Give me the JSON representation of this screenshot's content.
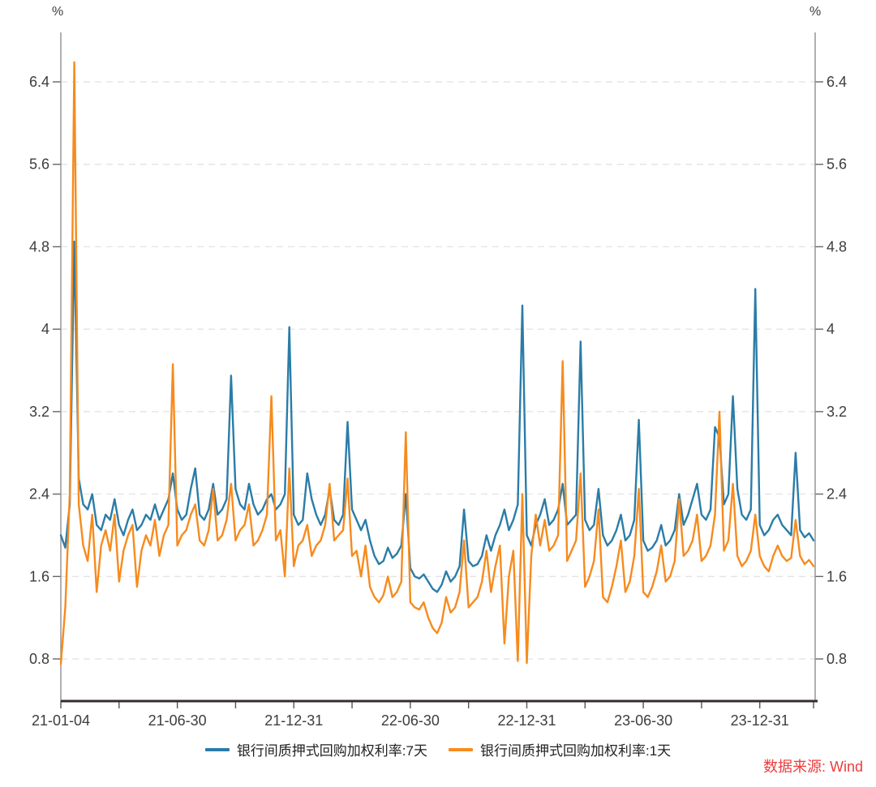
{
  "unit_left": "%",
  "unit_right": "%",
  "source_note": "数据来源: Wind",
  "colors": {
    "series_7d": "#2B7CA7",
    "series_1d": "#F68B1E",
    "grid": "#E1E1E1",
    "side_axis": "#8F8F8F",
    "bottom_axis": "#332E2C",
    "tick_text": "#3D3D3D",
    "source_red": "#EE3B3B"
  },
  "legend": [
    {
      "label": "银行间质押式回购加权利率:7天",
      "color": "#2B7CA7"
    },
    {
      "label": "银行间质押式回购加权利率:1天",
      "color": "#F68B1E"
    }
  ],
  "chart_data": {
    "type": "line",
    "title": "",
    "xlabel": "",
    "ylabel": "%",
    "ylim": [
      0.35,
      6.9
    ],
    "grid": "horizontal-dashed",
    "legend_position": "bottom-center",
    "y_ticks": [
      0.8,
      1.6,
      2.4,
      3.2,
      4,
      4.8,
      5.6,
      6.4
    ],
    "x_tick_labels": [
      "21-01-04",
      "21-06-30",
      "21-12-31",
      "22-06-30",
      "22-12-31",
      "23-06-30",
      "23-12-31"
    ],
    "x_ticks_weeks_per_label": 26,
    "x": [
      "2021-01-04",
      "2021-01-11",
      "2021-01-18",
      "2021-01-25",
      "2021-02-01",
      "2021-02-08",
      "2021-02-15",
      "2021-02-22",
      "2021-03-01",
      "2021-03-08",
      "2021-03-15",
      "2021-03-22",
      "2021-03-29",
      "2021-04-05",
      "2021-04-12",
      "2021-04-19",
      "2021-04-26",
      "2021-05-03",
      "2021-05-10",
      "2021-05-17",
      "2021-05-24",
      "2021-05-31",
      "2021-06-07",
      "2021-06-14",
      "2021-06-21",
      "2021-06-28",
      "2021-07-05",
      "2021-07-12",
      "2021-07-19",
      "2021-07-26",
      "2021-08-02",
      "2021-08-09",
      "2021-08-16",
      "2021-08-23",
      "2021-08-30",
      "2021-09-06",
      "2021-09-13",
      "2021-09-20",
      "2021-09-27",
      "2021-10-04",
      "2021-10-11",
      "2021-10-18",
      "2021-10-25",
      "2021-11-01",
      "2021-11-08",
      "2021-11-15",
      "2021-11-22",
      "2021-11-29",
      "2021-12-06",
      "2021-12-13",
      "2021-12-20",
      "2021-12-27",
      "2022-01-03",
      "2022-01-10",
      "2022-01-17",
      "2022-01-24",
      "2022-01-31",
      "2022-02-07",
      "2022-02-14",
      "2022-02-21",
      "2022-02-28",
      "2022-03-07",
      "2022-03-14",
      "2022-03-21",
      "2022-03-28",
      "2022-04-04",
      "2022-04-11",
      "2022-04-18",
      "2022-04-25",
      "2022-05-02",
      "2022-05-09",
      "2022-05-16",
      "2022-05-23",
      "2022-05-30",
      "2022-06-06",
      "2022-06-13",
      "2022-06-20",
      "2022-06-27",
      "2022-07-04",
      "2022-07-11",
      "2022-07-18",
      "2022-07-25",
      "2022-08-01",
      "2022-08-08",
      "2022-08-15",
      "2022-08-22",
      "2022-08-29",
      "2022-09-05",
      "2022-09-12",
      "2022-09-19",
      "2022-09-26",
      "2022-10-03",
      "2022-10-10",
      "2022-10-17",
      "2022-10-24",
      "2022-10-31",
      "2022-11-07",
      "2022-11-14",
      "2022-11-21",
      "2022-11-28",
      "2022-12-05",
      "2022-12-12",
      "2022-12-19",
      "2022-12-26",
      "2023-01-02",
      "2023-01-09",
      "2023-01-16",
      "2023-01-23",
      "2023-01-30",
      "2023-02-06",
      "2023-02-13",
      "2023-02-20",
      "2023-02-27",
      "2023-03-06",
      "2023-03-13",
      "2023-03-20",
      "2023-03-27",
      "2023-04-03",
      "2023-04-10",
      "2023-04-17",
      "2023-04-24",
      "2023-05-01",
      "2023-05-08",
      "2023-05-15",
      "2023-05-22",
      "2023-05-29",
      "2023-06-05",
      "2023-06-12",
      "2023-06-19",
      "2023-06-26",
      "2023-07-03",
      "2023-07-10",
      "2023-07-17",
      "2023-07-24",
      "2023-07-31",
      "2023-08-07",
      "2023-08-14",
      "2023-08-21",
      "2023-08-28",
      "2023-09-04",
      "2023-09-11",
      "2023-09-18",
      "2023-09-25",
      "2023-10-02",
      "2023-10-09",
      "2023-10-16",
      "2023-10-23",
      "2023-10-30",
      "2023-11-06",
      "2023-11-13",
      "2023-11-20",
      "2023-11-27",
      "2023-12-04",
      "2023-12-11",
      "2023-12-18",
      "2023-12-25",
      "2024-01-01",
      "2024-01-08",
      "2024-01-15",
      "2024-01-22",
      "2024-01-29",
      "2024-02-05",
      "2024-02-12",
      "2024-02-19",
      "2024-02-26",
      "2024-03-04",
      "2024-03-11",
      "2024-03-18",
      "2024-03-25"
    ],
    "series": [
      {
        "name": "银行间质押式回购加权利率:7天",
        "color": "#2B7CA7",
        "values": [
          2.0,
          1.88,
          2.3,
          4.85,
          2.55,
          2.3,
          2.25,
          2.4,
          2.1,
          2.05,
          2.2,
          2.15,
          2.35,
          2.1,
          2.0,
          2.15,
          2.25,
          2.05,
          2.1,
          2.2,
          2.15,
          2.3,
          2.15,
          2.25,
          2.35,
          2.6,
          2.25,
          2.15,
          2.2,
          2.45,
          2.65,
          2.2,
          2.15,
          2.25,
          2.5,
          2.2,
          2.25,
          2.35,
          3.55,
          2.45,
          2.3,
          2.25,
          2.5,
          2.3,
          2.2,
          2.25,
          2.35,
          2.4,
          2.25,
          2.3,
          2.4,
          4.02,
          2.2,
          2.1,
          2.15,
          2.6,
          2.35,
          2.2,
          2.1,
          2.2,
          2.45,
          2.15,
          2.1,
          2.2,
          3.1,
          2.25,
          2.15,
          2.05,
          2.15,
          1.95,
          1.8,
          1.72,
          1.75,
          1.88,
          1.78,
          1.82,
          1.9,
          2.4,
          1.68,
          1.6,
          1.58,
          1.62,
          1.55,
          1.48,
          1.45,
          1.52,
          1.65,
          1.55,
          1.6,
          1.7,
          2.25,
          1.75,
          1.7,
          1.72,
          1.8,
          2.0,
          1.85,
          2.0,
          2.1,
          2.25,
          2.05,
          2.15,
          2.3,
          4.23,
          2.0,
          1.9,
          2.1,
          2.2,
          2.35,
          2.1,
          2.15,
          2.25,
          2.5,
          2.1,
          2.15,
          2.2,
          3.88,
          2.15,
          2.05,
          2.1,
          2.45,
          2.0,
          1.9,
          1.95,
          2.05,
          2.2,
          1.95,
          2.0,
          2.15,
          3.12,
          1.95,
          1.85,
          1.88,
          1.95,
          2.1,
          1.9,
          1.95,
          2.05,
          2.4,
          2.1,
          2.2,
          2.35,
          2.5,
          2.2,
          2.15,
          2.25,
          3.05,
          2.95,
          2.3,
          2.4,
          3.35,
          2.45,
          2.2,
          2.15,
          2.25,
          4.39,
          2.1,
          2.0,
          2.05,
          2.15,
          2.2,
          2.1,
          2.05,
          2.0,
          2.8,
          2.05,
          1.98,
          2.02,
          1.95
        ]
      },
      {
        "name": "银行间质押式回购加权利率:1天",
        "color": "#F68B1E",
        "values": [
          0.75,
          1.3,
          2.4,
          6.59,
          2.3,
          1.9,
          1.75,
          2.2,
          1.45,
          1.9,
          2.05,
          1.85,
          2.2,
          1.55,
          1.85,
          2.0,
          2.1,
          1.5,
          1.85,
          2.0,
          1.9,
          2.15,
          1.8,
          2.0,
          2.1,
          3.66,
          1.9,
          2.0,
          2.05,
          2.2,
          2.3,
          1.95,
          1.9,
          2.05,
          2.45,
          1.95,
          2.0,
          2.15,
          2.5,
          1.95,
          2.05,
          2.1,
          2.3,
          1.9,
          1.95,
          2.05,
          2.2,
          3.35,
          1.95,
          2.05,
          1.6,
          2.65,
          1.7,
          1.9,
          1.95,
          2.1,
          1.8,
          1.9,
          1.95,
          2.1,
          2.5,
          1.95,
          2.0,
          2.05,
          2.55,
          1.8,
          1.85,
          1.6,
          1.9,
          1.5,
          1.4,
          1.35,
          1.42,
          1.6,
          1.4,
          1.45,
          1.55,
          3.0,
          1.35,
          1.3,
          1.28,
          1.35,
          1.2,
          1.1,
          1.05,
          1.15,
          1.4,
          1.25,
          1.3,
          1.45,
          1.95,
          1.3,
          1.35,
          1.4,
          1.55,
          1.85,
          1.45,
          1.7,
          1.9,
          0.95,
          1.6,
          1.85,
          0.78,
          2.4,
          0.76,
          1.8,
          2.2,
          1.9,
          2.15,
          1.85,
          1.9,
          2.0,
          3.69,
          1.75,
          1.85,
          1.95,
          2.6,
          1.5,
          1.6,
          1.75,
          2.25,
          1.4,
          1.35,
          1.5,
          1.7,
          1.95,
          1.45,
          1.55,
          1.8,
          2.45,
          1.45,
          1.4,
          1.5,
          1.65,
          1.9,
          1.55,
          1.6,
          1.75,
          2.35,
          1.8,
          1.85,
          1.95,
          2.2,
          1.75,
          1.8,
          1.9,
          2.2,
          3.2,
          1.85,
          1.95,
          2.5,
          1.8,
          1.7,
          1.75,
          1.85,
          2.2,
          1.8,
          1.7,
          1.65,
          1.8,
          1.9,
          1.8,
          1.75,
          1.78,
          2.15,
          1.8,
          1.72,
          1.76,
          1.7
        ]
      }
    ]
  }
}
